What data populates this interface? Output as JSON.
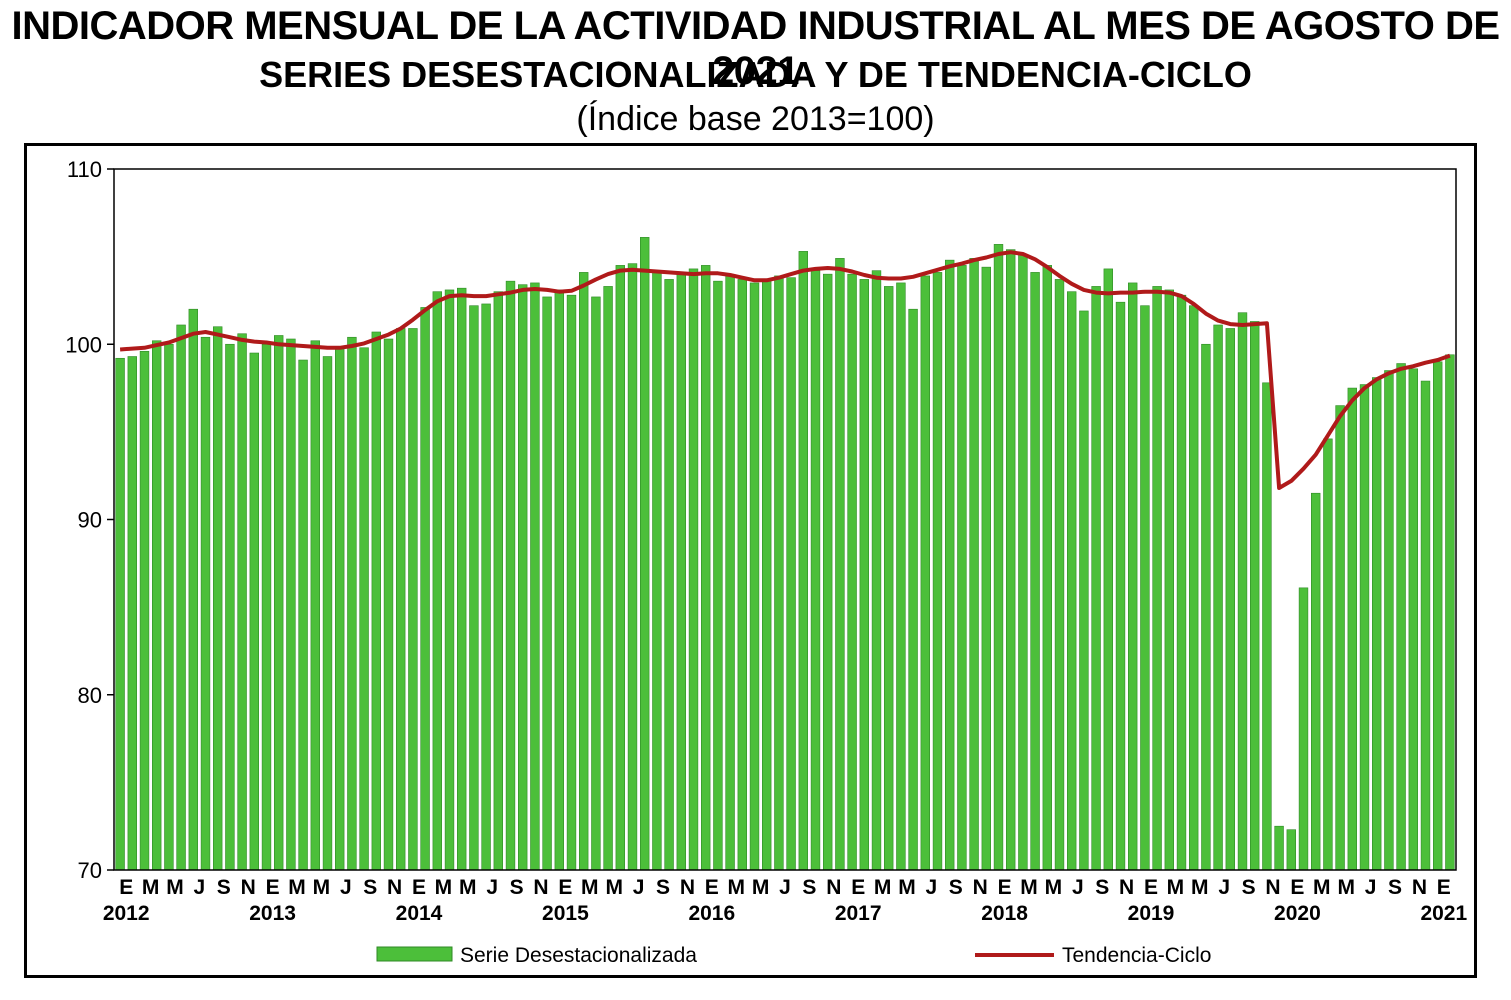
{
  "titles": {
    "line1": "INDICADOR MENSUAL DE LA ACTIVIDAD INDUSTRIAL AL MES DE AGOSTO DE 2021",
    "line2": "SERIES DESESTACIONALIZADA Y DE TENDENCIA-CICLO",
    "line3": "(Índice base 2013=100)"
  },
  "colors": {
    "bar_fill": "#4cbf3a",
    "bar_stroke": "#2f8a26",
    "line": "#b01a1a"
  },
  "chart_data": {
    "type": "bar",
    "title": "INDICADOR MENSUAL DE LA ACTIVIDAD INDUSTRIAL AL MES DE AGOSTO DE 2021",
    "subtitle": "SERIES DESESTACIONALIZADA Y DE TENDENCIA-CICLO (Índice base 2013=100)",
    "ylim": [
      70,
      110
    ],
    "yticks": [
      70,
      80,
      90,
      100,
      110
    ],
    "grid": false,
    "legend_position": "bottom",
    "month_labels": [
      "E",
      "M",
      "M",
      "J",
      "S",
      "N"
    ],
    "years": [
      "2012",
      "2013",
      "2014",
      "2015",
      "2016",
      "2017",
      "2018",
      "2019",
      "2020",
      "2021"
    ],
    "series": [
      {
        "name": "Serie Desestacionalizada",
        "type": "bar",
        "values": [
          99.2,
          99.3,
          99.6,
          100.2,
          100.0,
          101.1,
          102.0,
          100.4,
          101.0,
          100.0,
          100.6,
          99.5,
          100.0,
          100.5,
          100.3,
          99.1,
          100.2,
          99.3,
          99.8,
          100.4,
          99.8,
          100.7,
          100.3,
          100.9,
          100.9,
          102.1,
          103.0,
          103.1,
          103.2,
          102.2,
          102.3,
          103.0,
          103.6,
          103.4,
          103.5,
          102.7,
          103.1,
          102.8,
          104.1,
          102.7,
          103.3,
          104.5,
          104.6,
          106.1,
          104.1,
          103.7,
          104.0,
          104.3,
          104.5,
          103.6,
          103.9,
          103.7,
          103.5,
          103.7,
          103.9,
          103.8,
          105.3,
          104.2,
          104.0,
          104.9,
          104.0,
          103.7,
          104.2,
          103.3,
          103.5,
          102.0,
          103.9,
          104.1,
          104.8,
          104.5,
          104.9,
          104.4,
          105.7,
          105.4,
          105.1,
          104.1,
          104.5,
          103.7,
          103.0,
          101.9,
          103.3,
          104.3,
          102.4,
          103.5,
          102.2,
          103.3,
          103.1,
          102.8,
          102.2,
          100.0,
          101.1,
          100.9,
          101.8,
          101.3,
          97.8,
          72.5,
          72.3,
          86.1,
          91.5,
          94.6,
          96.5,
          97.5,
          97.7,
          98.1,
          98.5,
          98.9,
          98.6,
          97.9,
          99.0,
          99.4
        ]
      },
      {
        "name": "Tendencia-Ciclo",
        "type": "line",
        "values": [
          99.7,
          99.75,
          99.8,
          99.95,
          100.1,
          100.35,
          100.6,
          100.7,
          100.55,
          100.4,
          100.25,
          100.15,
          100.1,
          100.0,
          99.95,
          99.9,
          99.85,
          99.8,
          99.8,
          99.9,
          100.05,
          100.3,
          100.55,
          100.9,
          101.4,
          101.95,
          102.45,
          102.75,
          102.8,
          102.75,
          102.75,
          102.85,
          102.95,
          103.1,
          103.15,
          103.1,
          103.0,
          103.05,
          103.35,
          103.7,
          104.0,
          104.2,
          104.25,
          104.2,
          104.15,
          104.1,
          104.05,
          104.0,
          104.05,
          104.05,
          103.95,
          103.8,
          103.65,
          103.65,
          103.8,
          104.0,
          104.2,
          104.3,
          104.35,
          104.3,
          104.15,
          103.95,
          103.8,
          103.75,
          103.75,
          103.85,
          104.05,
          104.25,
          104.45,
          104.6,
          104.8,
          104.95,
          105.15,
          105.25,
          105.15,
          104.85,
          104.4,
          103.9,
          103.45,
          103.1,
          102.95,
          102.9,
          102.95,
          102.95,
          103.0,
          103.0,
          102.95,
          102.75,
          102.3,
          101.75,
          101.35,
          101.15,
          101.1,
          101.15,
          101.2,
          91.8,
          92.2,
          92.9,
          93.7,
          94.8,
          95.9,
          96.8,
          97.5,
          98.0,
          98.35,
          98.6,
          98.75,
          98.95,
          99.1,
          99.35
        ]
      }
    ]
  }
}
